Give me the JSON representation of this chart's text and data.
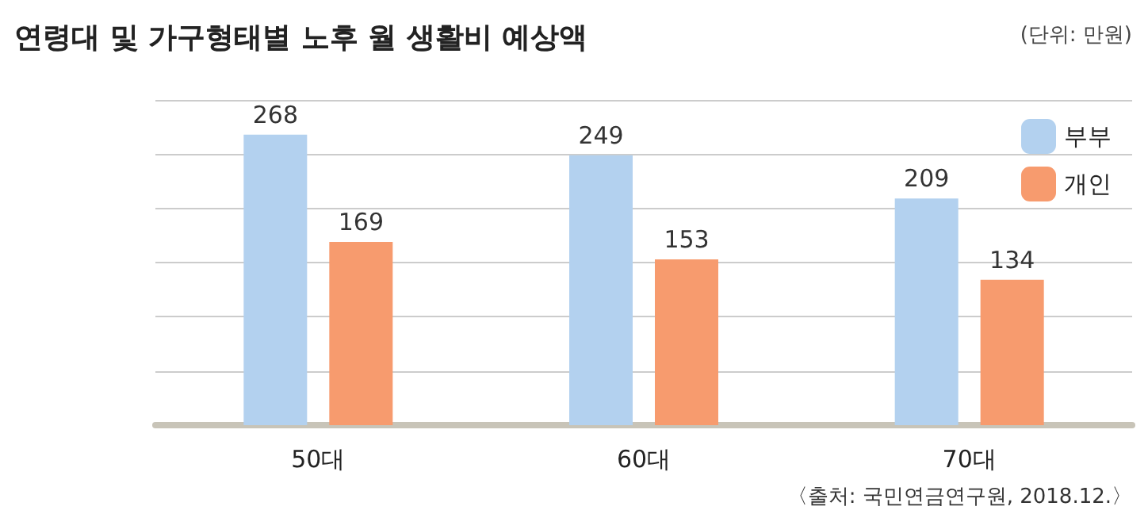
{
  "chart_data": {
    "type": "bar",
    "title": "연령대 및 가구형태별 노후 월 생활비 예상액",
    "categories": [
      "50대",
      "60대",
      "70대"
    ],
    "series": [
      {
        "name": "부부",
        "color": "#b3d1ef",
        "values": [
          268,
          249,
          209
        ]
      },
      {
        "name": "개인",
        "color": "#f79b6e",
        "values": [
          169,
          153,
          134
        ]
      }
    ],
    "ylim": [
      0,
      300
    ],
    "yticks": [
      {
        "value": 0,
        "label": null
      },
      {
        "value": 50,
        "label": null
      },
      {
        "value": 100,
        "label": null
      },
      {
        "value": 150,
        "label": null
      },
      {
        "value": 200,
        "label": null
      },
      {
        "value": 250,
        "label": null
      },
      {
        "value": 300,
        "label": null
      }
    ],
    "tick_labels": "x",
    "grid": "y",
    "legend": "top right",
    "data_labels": true,
    "annotations": [
      "(단위: 만원)",
      "〈출처: 국민연금연구원, 2018.12.〉"
    ]
  }
}
